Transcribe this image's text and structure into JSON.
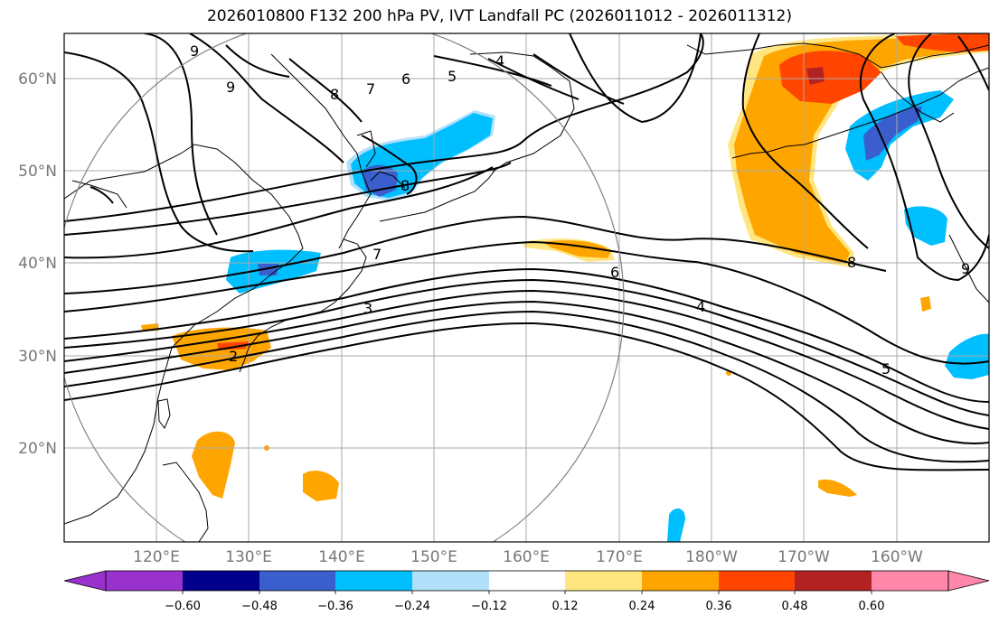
{
  "title": "2026010800 F132 200 hPa PV, IVT Landfall PC (2026011012 - 2026011312)",
  "map": {
    "lon_labels": [
      "120°E",
      "130°E",
      "140°E",
      "150°E",
      "160°E",
      "170°E",
      "180°W",
      "170°W",
      "160°W"
    ],
    "lat_labels": [
      "60°N",
      "50°N",
      "40°N",
      "30°N",
      "20°N"
    ],
    "pv_contour_labels": [
      "9",
      "8",
      "7",
      "6",
      "5",
      "4",
      "9",
      "8",
      "7",
      "6",
      "5",
      "4",
      "3",
      "2",
      "8",
      "9"
    ]
  },
  "colorbar": {
    "tick_labels": [
      "−0.60",
      "−0.48",
      "−0.36",
      "−0.24",
      "−0.12",
      "0.12",
      "0.24",
      "0.36",
      "0.48",
      "0.60"
    ],
    "colors": [
      "#9932cc",
      "#00008b",
      "#3a5fcd",
      "#00bfff",
      "#b0e0fa",
      "#ffffff",
      "#ffe680",
      "#ffa500",
      "#ff4500",
      "#b22222",
      "#ff88aa"
    ]
  },
  "colors": {
    "neg_strong": "#3a5fcd",
    "neg_mid": "#00bfff",
    "neg_weak": "#b0e0fa",
    "pos_weak": "#ffe680",
    "pos_mid": "#ffa500",
    "pos_strong": "#ff4500",
    "pos_max": "#b22222"
  }
}
